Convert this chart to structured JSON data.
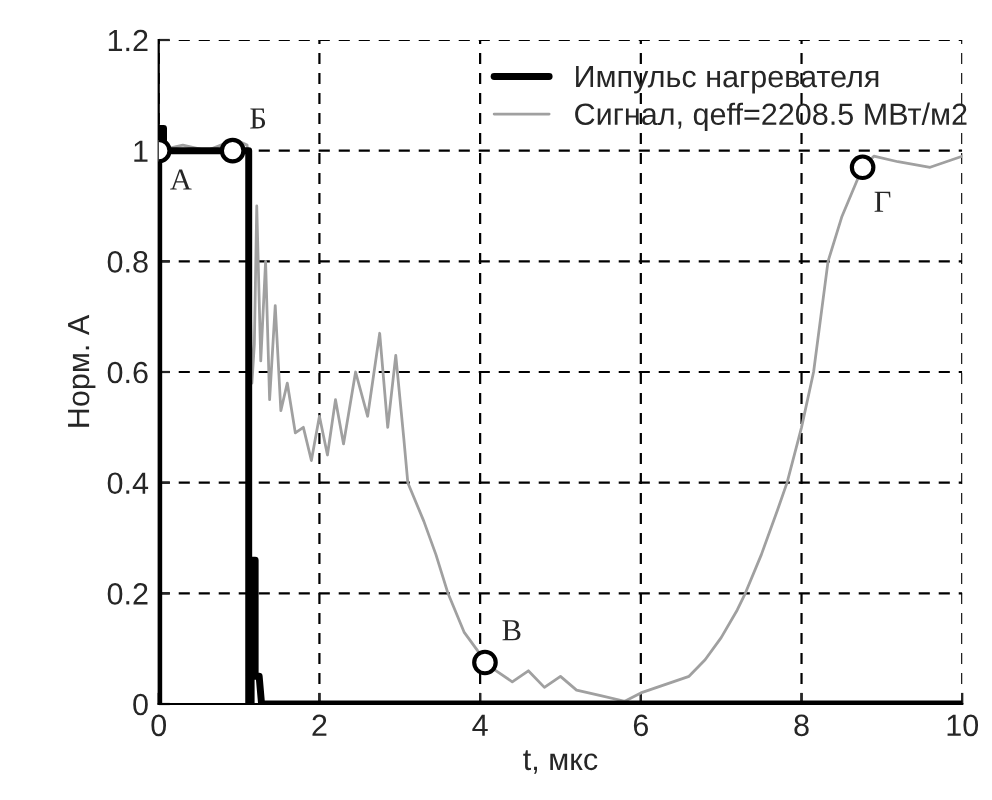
{
  "chart_data": {
    "type": "line",
    "xlabel": "t, мкс",
    "ylabel": "Норм. А",
    "xlim": [
      0,
      10
    ],
    "xticks": [
      0,
      2,
      4,
      6,
      8,
      10
    ],
    "ylim": [
      0,
      1.2
    ],
    "yticks": [
      0,
      0.2,
      0.4,
      0.6,
      0.8,
      1,
      1.2
    ],
    "grid": true,
    "legend": "top right",
    "line_style": "solid",
    "series": [
      {
        "name": "Импульс нагревателя",
        "color": "#000000",
        "x": [
          0,
          0,
          0.06,
          0.06,
          1.12,
          1.12,
          1.15,
          1.15,
          1.2,
          1.2,
          1.25,
          1.28,
          10
        ],
        "values": [
          0,
          1.04,
          1.04,
          1.0,
          1.0,
          0,
          0,
          0.26,
          0.26,
          0.05,
          0.05,
          0,
          0
        ]
      },
      {
        "name": "Сигнал, qeff=2208.5 МВт/м2",
        "color": "#a0a0a0",
        "x": [
          0,
          0.3,
          0.6,
          0.95,
          1.1,
          1.16,
          1.19,
          1.22,
          1.27,
          1.33,
          1.38,
          1.45,
          1.52,
          1.6,
          1.7,
          1.8,
          1.9,
          2.0,
          2.1,
          2.2,
          2.3,
          2.45,
          2.6,
          2.75,
          2.85,
          2.95,
          3.05,
          3.1,
          3.3,
          3.45,
          3.6,
          3.8,
          3.95,
          4.1,
          4.2,
          4.4,
          4.6,
          4.8,
          5.0,
          5.2,
          5.5,
          5.8,
          6.0,
          6.3,
          6.6,
          6.8,
          7.0,
          7.2,
          7.3,
          7.5,
          7.7,
          7.82,
          8.0,
          8.15,
          8.33,
          8.5,
          8.76,
          8.9,
          9.2,
          9.6,
          10
        ],
        "values": [
          1.0,
          1.01,
          1.0,
          1.02,
          1.01,
          0.58,
          0.65,
          0.9,
          0.62,
          0.8,
          0.55,
          0.72,
          0.53,
          0.58,
          0.49,
          0.5,
          0.44,
          0.52,
          0.45,
          0.55,
          0.47,
          0.6,
          0.52,
          0.67,
          0.5,
          0.63,
          0.48,
          0.4,
          0.33,
          0.27,
          0.2,
          0.13,
          0.1,
          0.07,
          0.06,
          0.04,
          0.06,
          0.03,
          0.05,
          0.025,
          0.015,
          0.005,
          0.02,
          0.035,
          0.05,
          0.08,
          0.12,
          0.17,
          0.2,
          0.27,
          0.35,
          0.4,
          0.5,
          0.6,
          0.8,
          0.88,
          0.97,
          0.99,
          0.98,
          0.97,
          0.99
        ]
      },
      {
        "type": "scatter",
        "marker": "circle",
        "color": "#000000",
        "x": [
          0,
          0.92,
          4.06,
          8.76
        ],
        "values": [
          1.0,
          1.0,
          0.075,
          0.97
        ]
      }
    ],
    "annotations": [
      {
        "text": "А",
        "x": 0,
        "y": 1.0
      },
      {
        "text": "Б",
        "x": 0.92,
        "y": 1.0
      },
      {
        "text": "В",
        "x": 4.06,
        "y": 0.075
      },
      {
        "text": "Г",
        "x": 8.76,
        "y": 0.97
      }
    ]
  }
}
